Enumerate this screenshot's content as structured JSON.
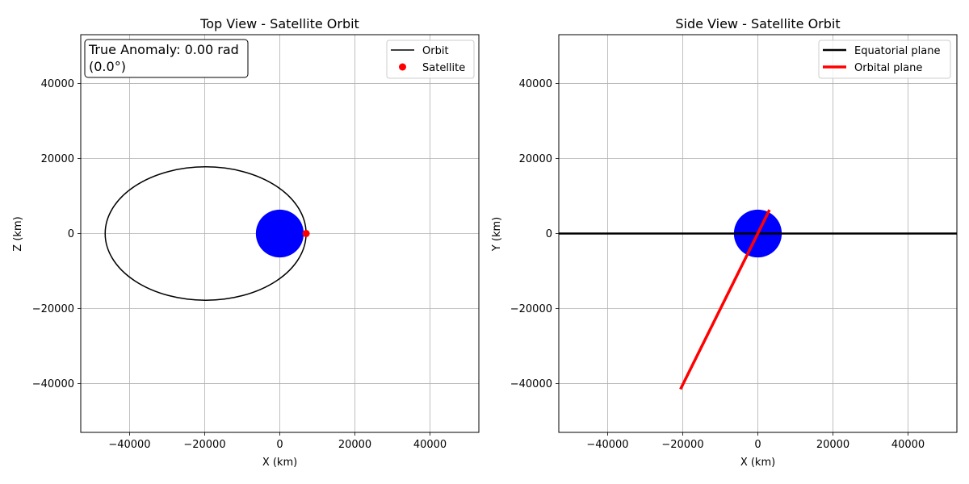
{
  "chart_data": [
    {
      "type": "line",
      "title": "Top View - Satellite Orbit",
      "xlabel": "X (km)",
      "ylabel": "Z (km)",
      "xlim": [
        -53000,
        53000
      ],
      "ylim": [
        -53000,
        53000
      ],
      "xticks": [
        -40000,
        -20000,
        0,
        20000,
        40000
      ],
      "yticks": [
        -40000,
        -20000,
        0,
        20000,
        40000
      ],
      "xtick_labels": [
        "−40000",
        "−20000",
        "0",
        "20000",
        "40000"
      ],
      "ytick_labels": [
        "−40000",
        "−20000",
        "0",
        "20000",
        "40000"
      ],
      "grid": true,
      "legend": "top-right",
      "planet": {
        "center": [
          0,
          0
        ],
        "radius": 6371,
        "color": "#0000ff"
      },
      "series": [
        {
          "name": "Orbit",
          "kind": "ellipse",
          "center": [
            -19750,
            0
          ],
          "semi_major": 26750,
          "semi_minor": 17780,
          "color": "#000000"
        },
        {
          "name": "Satellite",
          "kind": "point",
          "x": 7000,
          "y": 0,
          "color": "#ff0000"
        }
      ],
      "annotation": {
        "line1": "True Anomaly: 0.00 rad",
        "line2": "(0.0°)"
      }
    },
    {
      "type": "line",
      "title": "Side View - Satellite Orbit",
      "xlabel": "X (km)",
      "ylabel": "Y (km)",
      "xlim": [
        -53000,
        53000
      ],
      "ylim": [
        -53000,
        53000
      ],
      "xticks": [
        -40000,
        -20000,
        0,
        20000,
        40000
      ],
      "yticks": [
        -40000,
        -20000,
        0,
        20000,
        40000
      ],
      "xtick_labels": [
        "−40000",
        "−20000",
        "0",
        "20000",
        "40000"
      ],
      "ytick_labels": [
        "−40000",
        "−20000",
        "0",
        "20000",
        "40000"
      ],
      "grid": true,
      "legend": "top-right",
      "planet": {
        "center": [
          0,
          0
        ],
        "radius": 6371,
        "color": "#0000ff"
      },
      "series": [
        {
          "name": "Equatorial plane",
          "kind": "line",
          "x": [
            -53000,
            53000
          ],
          "y": [
            0,
            0
          ],
          "color": "#000000"
        },
        {
          "name": "Orbital plane",
          "kind": "line",
          "x": [
            -20600,
            3100
          ],
          "y": [
            -41500,
            6300
          ],
          "color": "#ff0000"
        }
      ]
    }
  ]
}
